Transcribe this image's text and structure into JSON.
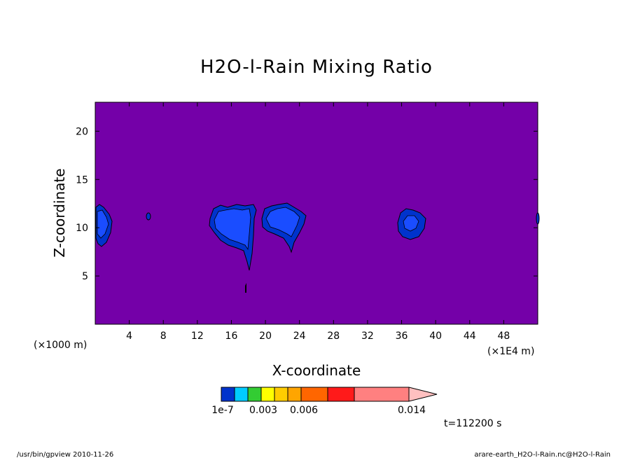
{
  "chart_data": {
    "type": "heatmap",
    "title": "H2O-l-Rain Mixing Ratio",
    "xlabel": "X-coordinate",
    "ylabel": "Z-coordinate",
    "x_unit_left": "(×1000 m)",
    "x_unit_right": "(×1E4 m)",
    "xlim": [
      0,
      52
    ],
    "ylim": [
      0,
      23
    ],
    "x_ticks": [
      4,
      8,
      12,
      16,
      20,
      24,
      28,
      32,
      36,
      40,
      44,
      48
    ],
    "y_ticks": [
      5,
      10,
      15,
      20
    ],
    "background_level": "< 1e-7",
    "colorbar": {
      "label_values": [
        "1e-7",
        "0.003",
        "0.006",
        "0.014"
      ],
      "colors": [
        "#0033cc",
        "#00ccff",
        "#33cc33",
        "#ffff00",
        "#ffcc00",
        "#ffa500",
        "#ff6600",
        "#ff1a1a",
        "#ff8080",
        "#ffc0c0"
      ]
    },
    "background_color": "#7400a8",
    "features": [
      {
        "x_center": 1,
        "z_center": 10.3
      },
      {
        "x_center": 6.2,
        "z_center": 11.0
      },
      {
        "x_center": 17,
        "z_center": 10.5
      },
      {
        "x_center": 21.5,
        "z_center": 10.8
      },
      {
        "x_center": 36.5,
        "z_center": 10.2
      }
    ]
  },
  "time_label": "t=112200 s",
  "footer": {
    "left": "/usr/bin/gpview  2010-11-26",
    "right": "arare-earth_H2O-l-Rain.nc@H2O-l-Rain"
  }
}
